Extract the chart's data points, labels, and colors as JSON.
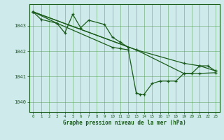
{
  "title": "Graphe pression niveau de la mer (hPa)",
  "x_ticks": [
    0,
    1,
    2,
    3,
    4,
    5,
    6,
    7,
    8,
    9,
    10,
    11,
    12,
    13,
    14,
    15,
    16,
    17,
    18,
    19,
    20,
    21,
    22,
    23
  ],
  "ylim": [
    1039.6,
    1043.85
  ],
  "yticks": [
    1040,
    1041,
    1042,
    1043
  ],
  "background_color": "#ceeaea",
  "grid_color": "#4e9a4e",
  "line_color": "#1a5c1a",
  "s1_x": [
    0,
    1,
    3,
    4,
    5,
    6,
    7,
    9,
    10,
    11,
    12
  ],
  "s1_y": [
    1043.55,
    1043.25,
    1043.1,
    1042.72,
    1043.45,
    1042.92,
    1043.22,
    1043.05,
    1042.55,
    1042.35,
    1042.15
  ],
  "s2_x": [
    0,
    3,
    10,
    11,
    12,
    13,
    13.5,
    14,
    15,
    16,
    17,
    18,
    19,
    20,
    21,
    22,
    23
  ],
  "s2_y": [
    1043.55,
    1043.1,
    1042.15,
    1042.1,
    1042.05,
    1040.35,
    1040.3,
    1040.3,
    1040.72,
    1040.82,
    1040.82,
    1040.82,
    1041.12,
    1041.12,
    1041.42,
    1041.42,
    1041.22
  ],
  "s3_x": [
    0,
    13,
    19,
    21,
    23
  ],
  "s3_y": [
    1043.55,
    1042.05,
    1041.52,
    1041.42,
    1041.22
  ],
  "s4_x": [
    0,
    13,
    19,
    21,
    23
  ],
  "s4_y": [
    1043.55,
    1042.05,
    1041.12,
    1041.12,
    1041.15
  ]
}
